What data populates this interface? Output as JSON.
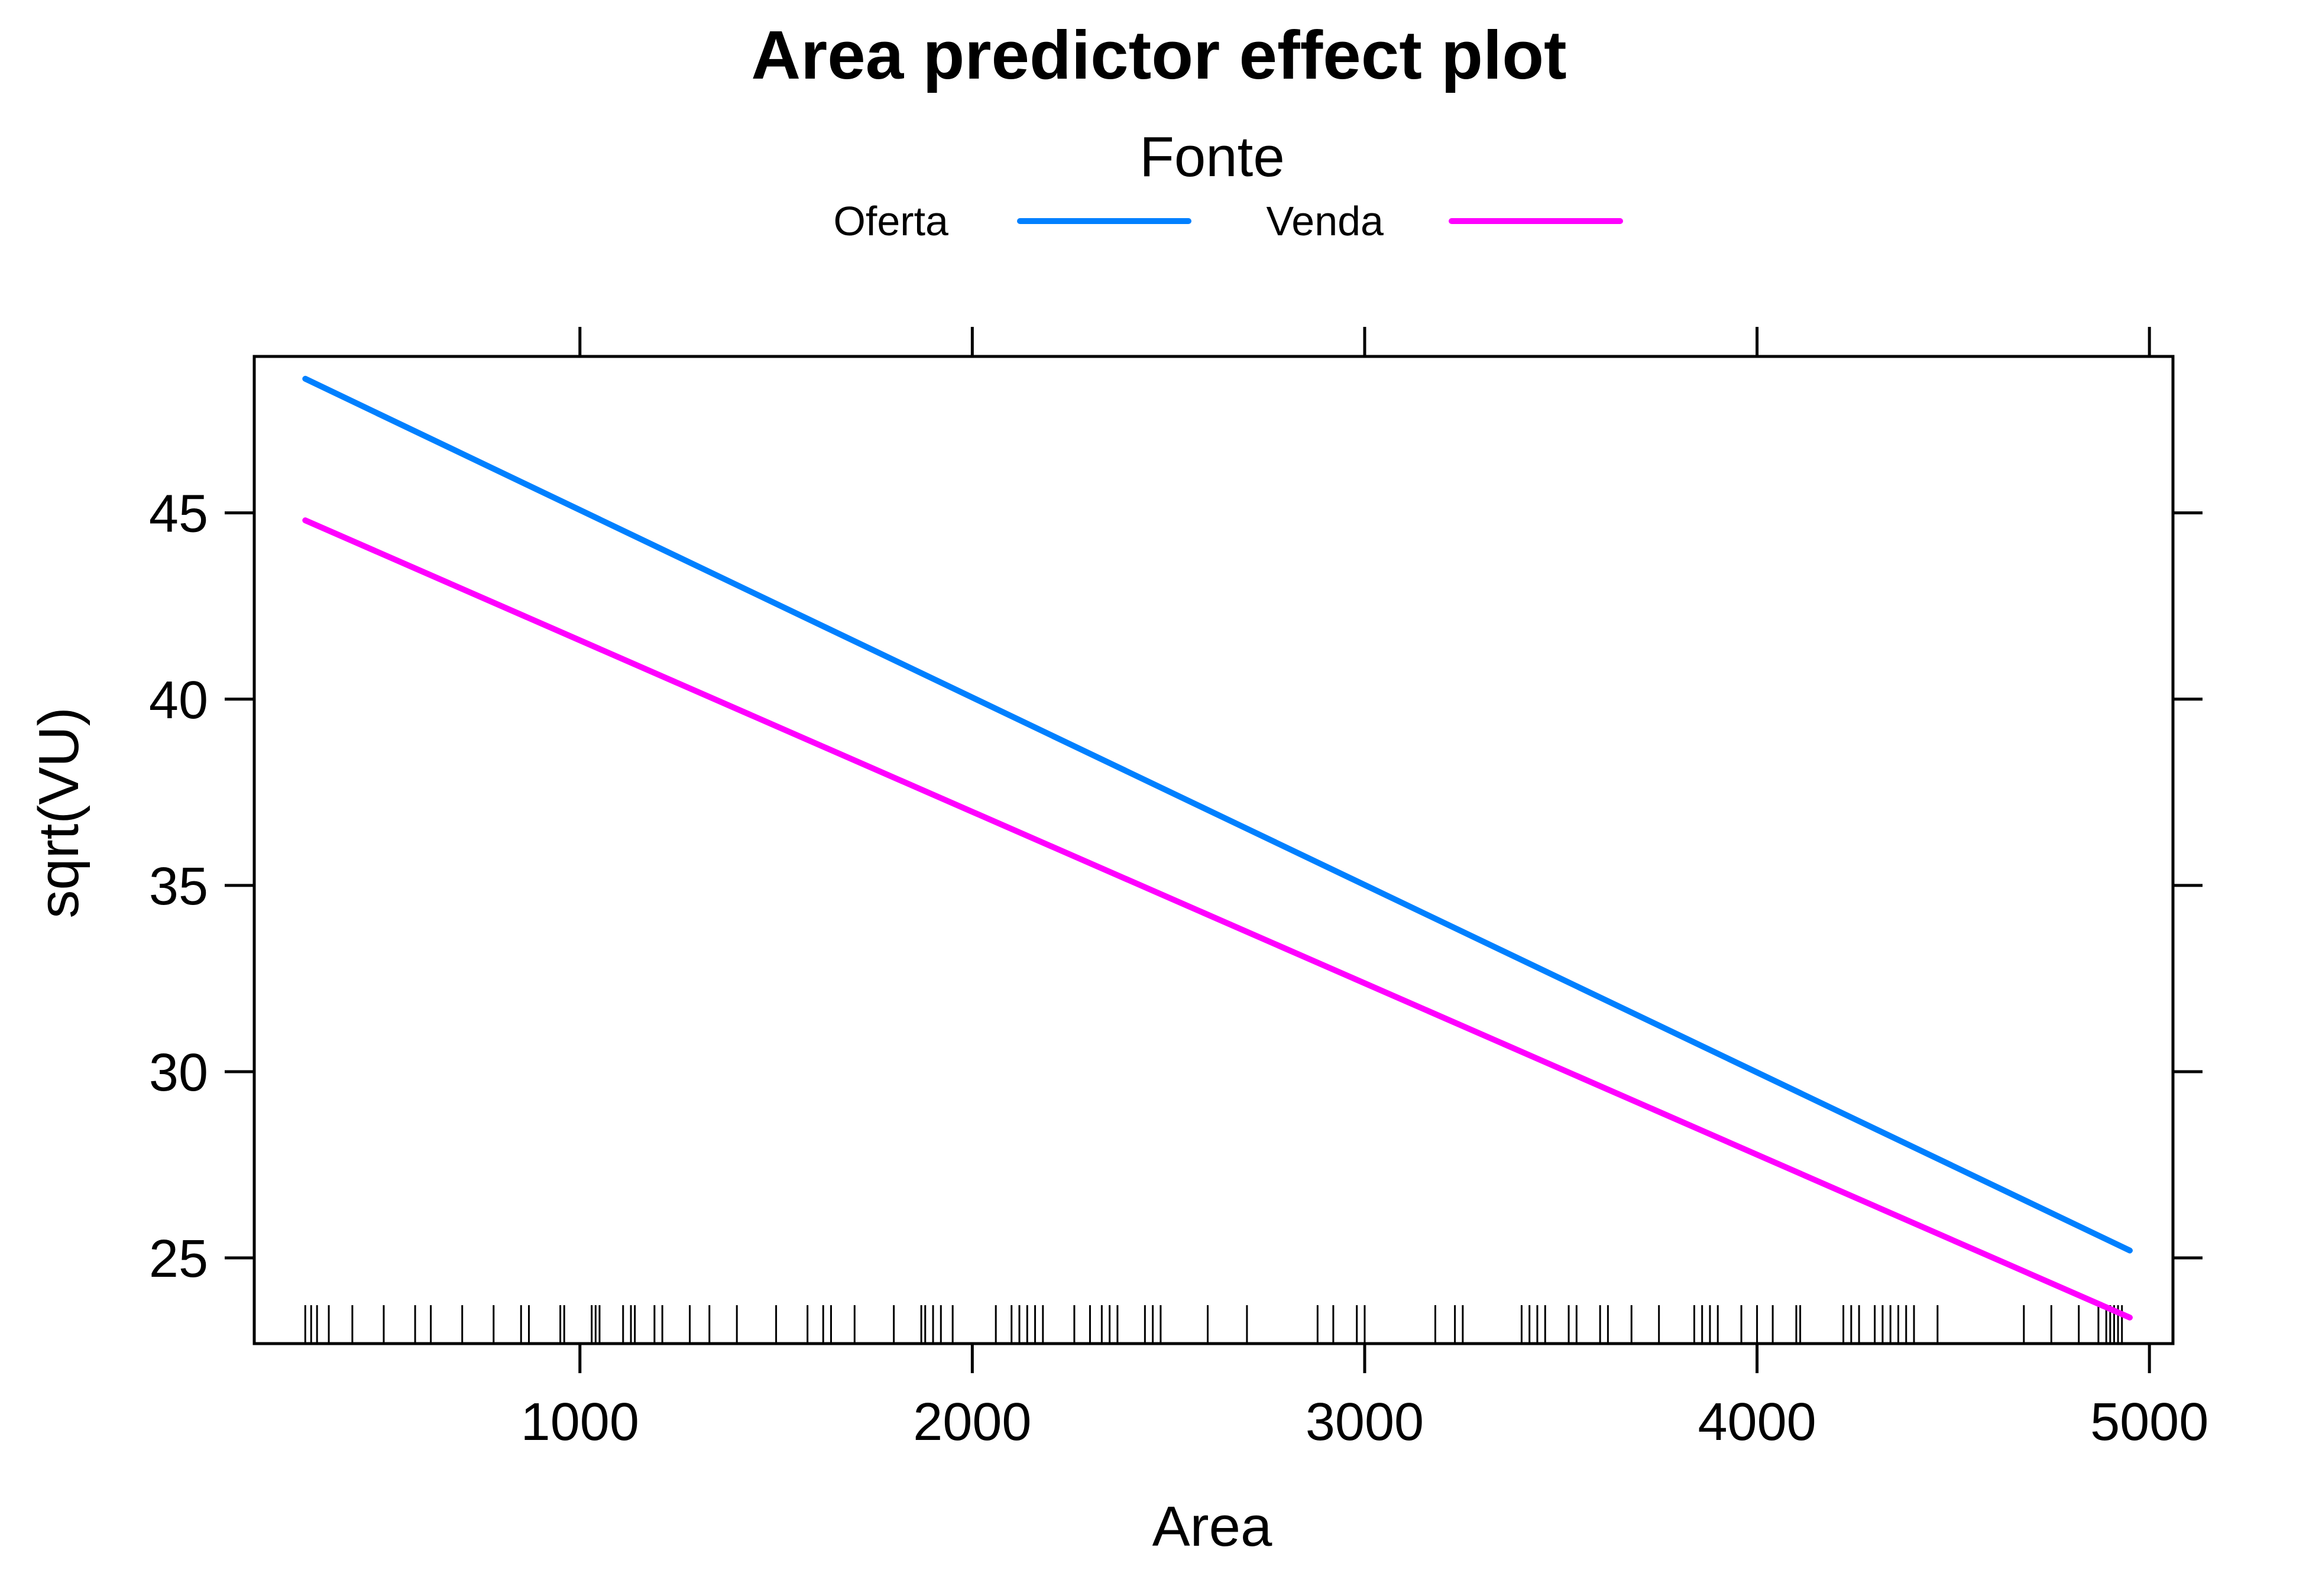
{
  "chart_data": {
    "type": "line",
    "title": "Area predictor effect plot",
    "xlabel": "Area",
    "ylabel": "sqrt(VU)",
    "xlim": [
      170,
      5060
    ],
    "ylim": [
      22.7,
      49.2
    ],
    "xticks": [
      1000,
      2000,
      3000,
      4000,
      5000
    ],
    "yticks": [
      25,
      30,
      35,
      40,
      45
    ],
    "grid": false,
    "legend": {
      "title": "Fonte",
      "placement": "top"
    },
    "series": [
      {
        "name": "Oferta",
        "color": "#0080ff",
        "x": [
          300,
          4950
        ],
        "y": [
          48.6,
          25.2
        ]
      },
      {
        "name": "Venda",
        "color": "#ff00ff",
        "x": [
          300,
          4950
        ],
        "y": [
          44.8,
          23.4
        ]
      }
    ],
    "rug": [
      300,
      315,
      330,
      360,
      420,
      500,
      580,
      620,
      700,
      780,
      850,
      870,
      950,
      960,
      1030,
      1040,
      1050,
      1110,
      1130,
      1140,
      1190,
      1210,
      1280,
      1330,
      1400,
      1500,
      1580,
      1620,
      1640,
      1700,
      1800,
      1870,
      1880,
      1900,
      1920,
      1950,
      2060,
      2100,
      2120,
      2140,
      2160,
      2180,
      2260,
      2300,
      2330,
      2350,
      2370,
      2440,
      2460,
      2480,
      2600,
      2700,
      2880,
      2920,
      2980,
      3000,
      3180,
      3230,
      3250,
      3400,
      3420,
      3440,
      3460,
      3520,
      3540,
      3600,
      3620,
      3680,
      3750,
      3840,
      3860,
      3880,
      3900,
      3960,
      4000,
      4040,
      4100,
      4110,
      4220,
      4240,
      4260,
      4300,
      4320,
      4340,
      4360,
      4380,
      4400,
      4460,
      4680,
      4750,
      4820,
      4870,
      4890,
      4900,
      4910,
      4920,
      4930
    ]
  }
}
